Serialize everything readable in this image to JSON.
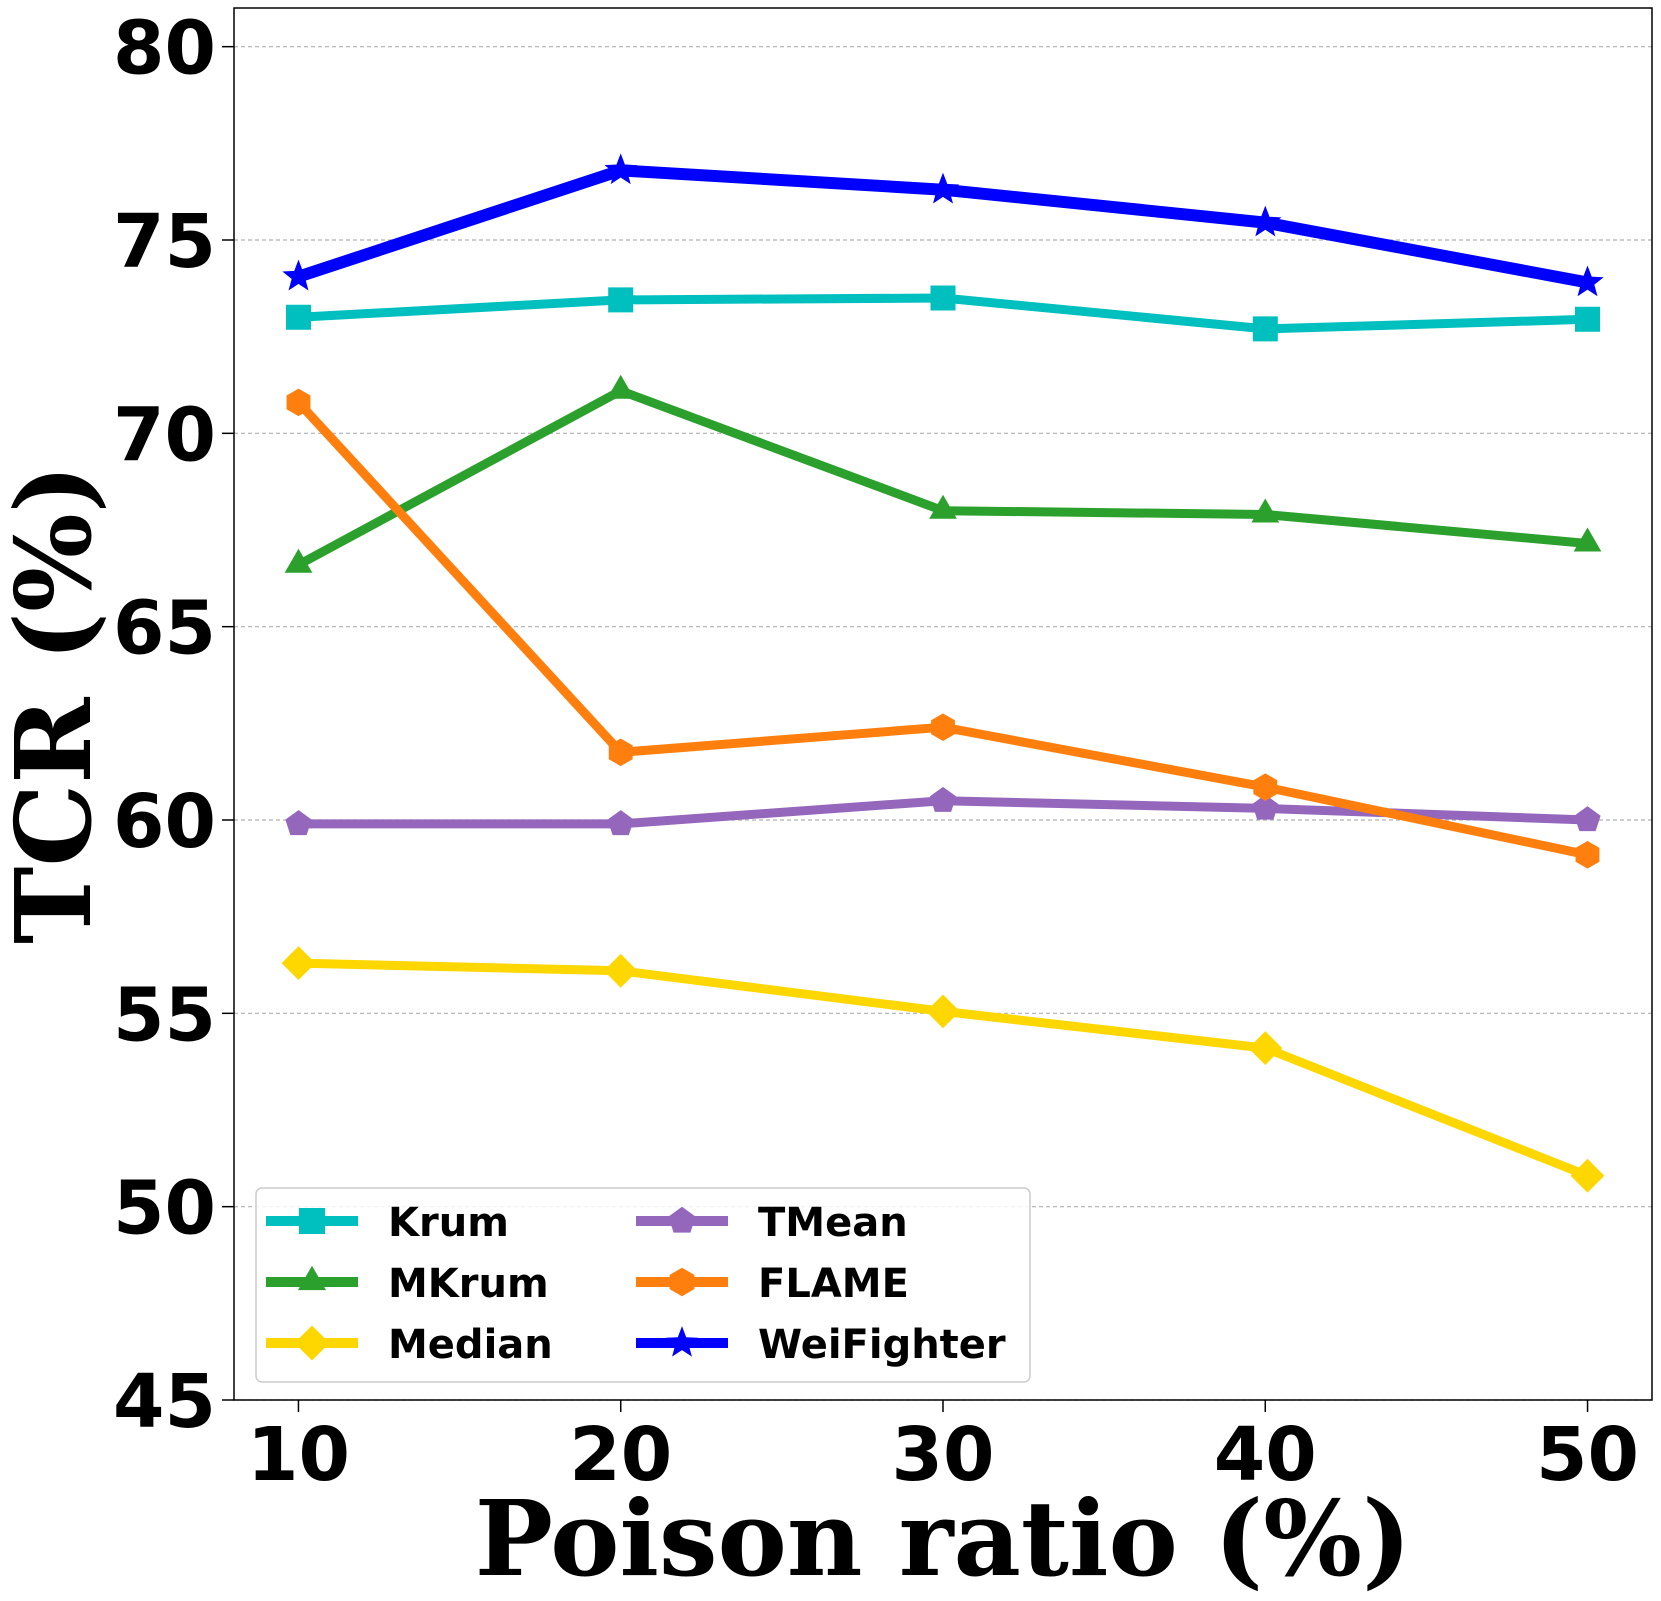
{
  "chart_data": {
    "type": "line",
    "title": "",
    "xlabel": "Poison ratio (%)",
    "ylabel": "TCR (%)",
    "x": [
      10,
      20,
      30,
      40,
      50
    ],
    "x_tick_labels": [
      "10",
      "20",
      "30",
      "40",
      "50"
    ],
    "xlim": [
      8,
      52
    ],
    "ylim": [
      45,
      81
    ],
    "y_ticks": [
      45,
      50,
      55,
      60,
      65,
      70,
      75,
      80
    ],
    "y_tick_labels": [
      "45",
      "50",
      "55",
      "60",
      "65",
      "70",
      "75",
      "80"
    ],
    "grid": "horizontal dashed",
    "legend_position": "lower-left",
    "series": [
      {
        "name": "Krum",
        "color": "#00bfbf",
        "marker": "square",
        "values": [
          73.0,
          73.45,
          73.5,
          72.7,
          72.95
        ]
      },
      {
        "name": "MKrum",
        "color": "#2ca02c",
        "marker": "triangle",
        "values": [
          66.6,
          71.1,
          68.0,
          67.9,
          67.15
        ]
      },
      {
        "name": "Median",
        "color": "#ffd700",
        "marker": "diamond",
        "values": [
          56.3,
          56.1,
          55.05,
          54.1,
          50.8
        ]
      },
      {
        "name": "TMean",
        "color": "#9467bd",
        "marker": "pentagon",
        "values": [
          59.9,
          59.9,
          60.5,
          60.3,
          60.0
        ]
      },
      {
        "name": "FLAME",
        "color": "#ff7f0e",
        "marker": "hexagon",
        "values": [
          70.8,
          61.75,
          62.4,
          60.85,
          59.1
        ]
      },
      {
        "name": "WeiFighter",
        "color": "#0000ff",
        "marker": "star",
        "values": [
          74.05,
          76.8,
          76.3,
          75.45,
          73.9
        ]
      }
    ]
  }
}
